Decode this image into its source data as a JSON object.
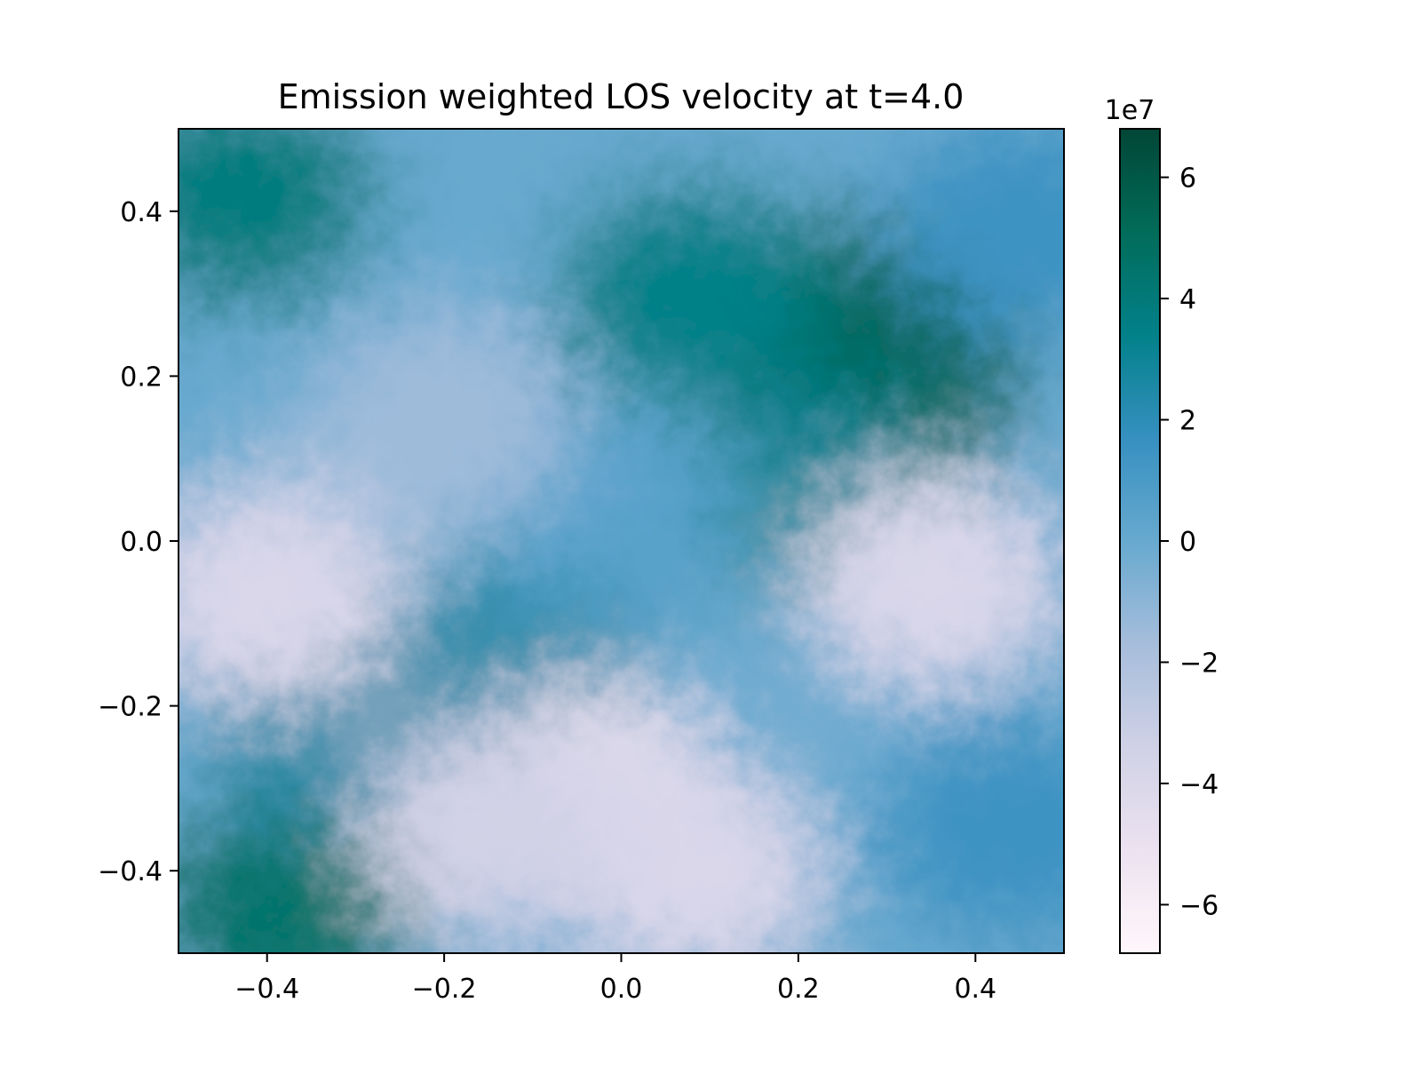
{
  "chart_data": {
    "type": "heatmap",
    "title": "Emission weighted LOS velocity at t=4.0",
    "xlabel": "",
    "ylabel": "",
    "xlim": [
      -0.5,
      0.5
    ],
    "ylim": [
      -0.5,
      0.5
    ],
    "xticks": [
      -0.4,
      -0.2,
      0.0,
      0.2,
      0.4
    ],
    "xtick_labels": [
      "−0.4",
      "−0.2",
      "0.0",
      "0.2",
      "0.4"
    ],
    "yticks": [
      -0.4,
      -0.2,
      0.0,
      0.2,
      0.4
    ],
    "ytick_labels": [
      "−0.4",
      "−0.2",
      "0.0",
      "0.2",
      "0.4"
    ],
    "grid": false,
    "colorbar": {
      "range": [
        -68000000,
        68000000
      ],
      "offset_label": "1e7",
      "ticks": [
        -6,
        -4,
        -2,
        0,
        2,
        4,
        6
      ],
      "tick_labels": [
        "−6",
        "−4",
        "−2",
        "0",
        "2",
        "4",
        "6"
      ],
      "colormap": "PuBuGn",
      "colors": [
        "#fff7fb",
        "#ece2f0",
        "#d0d1e6",
        "#a6bddb",
        "#67a9cf",
        "#3690c0",
        "#02818a",
        "#016c59",
        "#014636"
      ]
    },
    "regions": [
      {
        "x": 0.2,
        "y": 0.26,
        "value": 55000000
      },
      {
        "x": 0.3,
        "y": 0.2,
        "value": 55000000
      },
      {
        "x": 0.08,
        "y": 0.3,
        "value": 35000000
      },
      {
        "x": 0.24,
        "y": 0.05,
        "value": 30000000
      },
      {
        "x": -0.43,
        "y": 0.42,
        "value": 38000000
      },
      {
        "x": -0.38,
        "y": -0.45,
        "value": 45000000
      },
      {
        "x": -0.32,
        "y": -0.22,
        "value": 25000000
      },
      {
        "x": -0.12,
        "y": -0.1,
        "value": 25000000
      },
      {
        "x": 0.45,
        "y": 0.38,
        "value": 15000000
      },
      {
        "x": 0.44,
        "y": -0.35,
        "value": 15000000
      },
      {
        "x": -0.02,
        "y": 0.05,
        "value": 5000000
      },
      {
        "x": -0.3,
        "y": 0.05,
        "value": -10000000
      },
      {
        "x": 0.35,
        "y": -0.05,
        "value": -40000000
      },
      {
        "x": -0.4,
        "y": -0.07,
        "value": -40000000
      },
      {
        "x": -0.03,
        "y": -0.3,
        "value": -45000000
      },
      {
        "x": 0.08,
        "y": -0.4,
        "value": -40000000
      },
      {
        "x": -0.15,
        "y": -0.35,
        "value": -35000000
      },
      {
        "x": -0.2,
        "y": 0.15,
        "value": -15000000
      }
    ]
  }
}
